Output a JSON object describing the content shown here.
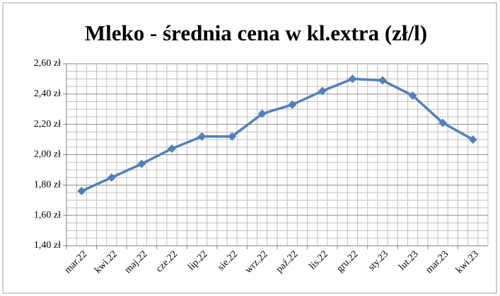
{
  "chart_data": {
    "type": "line",
    "title": "Mleko - średnia cena w kl.extra (zł/l)",
    "categories": [
      "mar.22",
      "kwi.22",
      "maj.22",
      "cze.22",
      "lip.22",
      "sie.22",
      "wrz.22",
      "paź.22",
      "lis.22",
      "gru.22",
      "sty.23",
      "lut.23",
      "mar.23",
      "kwi.23"
    ],
    "series": [
      {
        "name": "Mleko",
        "color": "#4f81bd",
        "values": [
          1.76,
          1.85,
          1.94,
          2.04,
          2.12,
          2.12,
          2.27,
          2.33,
          2.42,
          2.5,
          2.49,
          2.39,
          2.21,
          2.1
        ]
      }
    ],
    "ylim": [
      1.4,
      2.6
    ],
    "yticks": [
      {
        "value": 1.4,
        "label": "1,40 zł"
      },
      {
        "value": 1.6,
        "label": "1,60 zł"
      },
      {
        "value": 1.8,
        "label": "1,80 zł"
      },
      {
        "value": 2.0,
        "label": "2,00 zł"
      },
      {
        "value": 2.2,
        "label": "2,20 zł"
      },
      {
        "value": 2.4,
        "label": "2,40 zł"
      },
      {
        "value": 2.6,
        "label": "2,60 zł"
      }
    ],
    "grid": true
  }
}
